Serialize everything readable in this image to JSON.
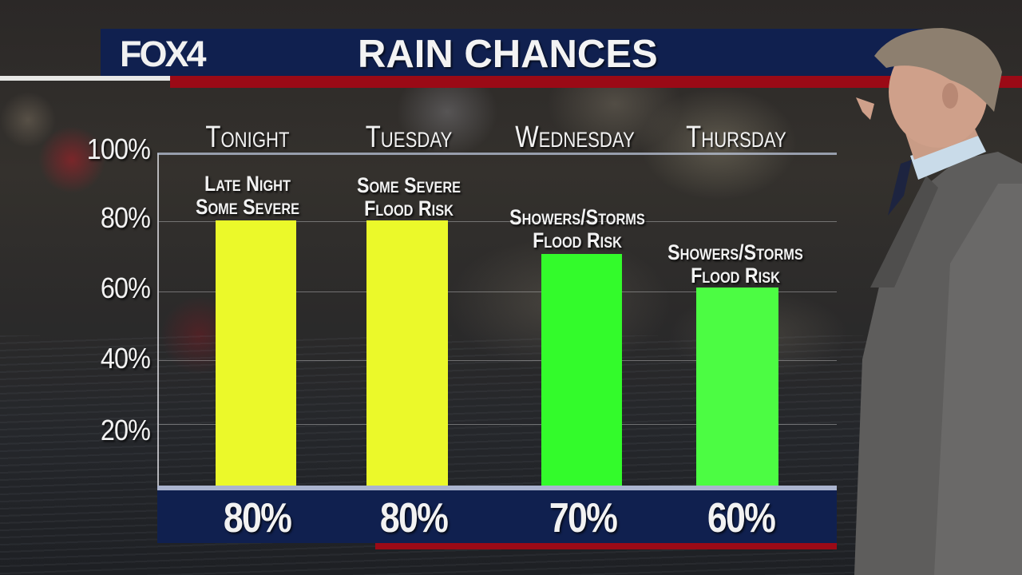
{
  "header": {
    "logo_text": "FOX4",
    "title": "RAIN CHANCES",
    "colors": {
      "navy": "#10204f",
      "red": "#9b0a16",
      "white": "#e8e8e6"
    }
  },
  "chart_data": {
    "type": "bar",
    "title": "RAIN CHANCES",
    "categories": [
      "Tonight",
      "Tuesday",
      "Wednesday",
      "Thursday"
    ],
    "values": [
      80,
      80,
      70,
      60
    ],
    "value_labels": [
      "80%",
      "80%",
      "70%",
      "60%"
    ],
    "annotations": [
      [
        "Late Night",
        "Some Severe"
      ],
      [
        "Some Severe",
        "Flood Risk"
      ],
      [
        "Showers/Storms",
        "Flood Risk"
      ],
      [
        "Showers/Storms",
        "Flood Risk"
      ]
    ],
    "bar_colors": [
      "#ebf92a",
      "#ebf92a",
      "#33fb2b",
      "#4cfc43"
    ],
    "xlabel": "",
    "ylabel": "",
    "ylim": [
      0,
      100
    ],
    "yticks": [
      "100%",
      "80%",
      "60%",
      "40%",
      "20%"
    ],
    "grid": true,
    "legend": "none"
  }
}
